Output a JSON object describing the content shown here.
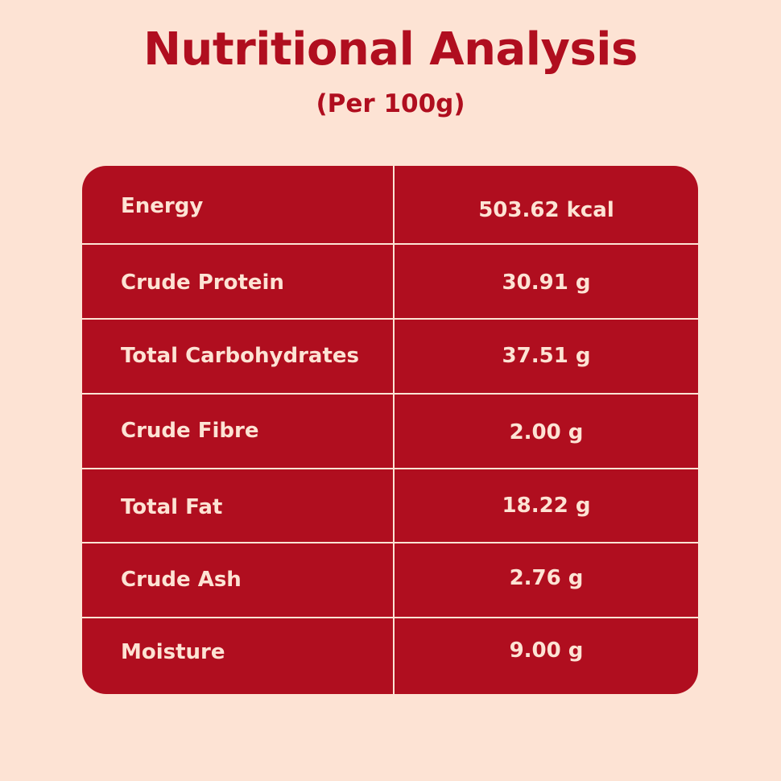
{
  "header": {
    "title": "Nutritional Analysis",
    "subtitle": "(Per 100g)"
  },
  "colors": {
    "background": "#fde3d4",
    "accent": "#b00e1f",
    "table_text": "#fde3d4"
  },
  "table": {
    "rows": [
      {
        "label": "Energy",
        "value": "503.62 kcal"
      },
      {
        "label": "Crude Protein",
        "value": "30.91 g"
      },
      {
        "label": "Total Carbohydrates",
        "value": "37.51 g"
      },
      {
        "label": "Crude Fibre",
        "value": "2.00 g"
      },
      {
        "label": "Total Fat",
        "value": "18.22 g"
      },
      {
        "label": "Crude Ash",
        "value": "2.76 g"
      },
      {
        "label": "Moisture",
        "value": "9.00 g"
      }
    ]
  }
}
